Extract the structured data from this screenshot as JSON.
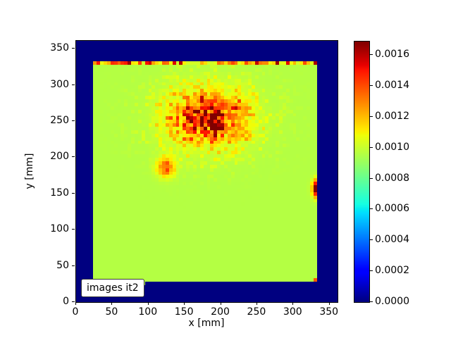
{
  "figure": {
    "background": "#ffffff",
    "legend_label": "images it2"
  },
  "chart_data": {
    "type": "heatmap",
    "title": "",
    "xlabel": "x [mm]",
    "ylabel": "y [mm]",
    "xlim": [
      0,
      361
    ],
    "ylim": [
      0,
      361
    ],
    "x_ticks": [
      0,
      50,
      100,
      150,
      200,
      250,
      300,
      350
    ],
    "y_ticks": [
      0,
      50,
      100,
      150,
      200,
      250,
      300,
      350
    ],
    "grid": false,
    "colormap": "jet",
    "vmin": 0.0,
    "vmax": 0.001688,
    "colorbar_ticks": [
      "0.0000",
      "0.0002",
      "0.0004",
      "0.0006",
      "0.0008",
      "0.0010",
      "0.0012",
      "0.0014",
      "0.0016"
    ],
    "grid_cell_mm": 4.75,
    "noise_seed": 7,
    "background_value": 0.0,
    "plate_region": {
      "x_left": 24.5,
      "x_right": 331.6,
      "y_bottom": 29.0,
      "y_bottom_left": 25.5,
      "y_bottom_step_x": 95,
      "y_top": 333.0,
      "value": 0.00096
    },
    "features": {
      "top_edge_speckle_row": {
        "y": 330,
        "amplitude": 0.0007
      },
      "main_blob": {
        "cx": 183,
        "cy": 255,
        "sx": 36,
        "sy": 26,
        "amp": 0.00062,
        "core_sx": 20,
        "core_sy": 15,
        "core_amp": 0.00055,
        "halo_sx": 52,
        "halo_sy": 36,
        "halo_amp": 0.00042,
        "halo_density": 0.25,
        "gain": 1.4
      },
      "spot_left": {
        "cx": 124,
        "cy": 186,
        "sx": 8,
        "sy": 9,
        "amp": 0.00058
      },
      "spot_right_edge": {
        "cx": 332,
        "cy": 157,
        "sx": 4,
        "sy": 8,
        "amp": 0.00085
      },
      "corner_dot": {
        "x": 329.5,
        "y": 31,
        "amp": 0.00042
      }
    },
    "key_colors": {
      "background_navy": "#000080",
      "plate_green": "#c3f233",
      "hot_red": "#d21400",
      "colorbar_top": "#800000"
    }
  }
}
